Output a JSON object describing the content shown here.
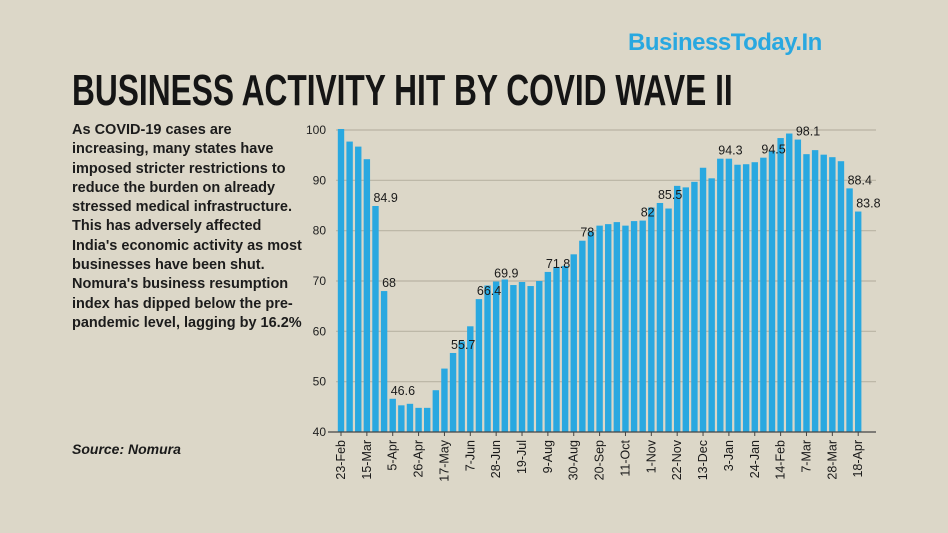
{
  "logo": "BusinessToday.In",
  "title": "BUSINESS ACTIVITY HIT BY COVID WAVE II",
  "description": "As COVID-19 cases are increasing, many states have imposed stricter restrictions to reduce the burden on already stressed medical infrastructure. This has adversely affected India's economic activity as most businesses have been shut. Nomura's business resumption index has dipped below the pre-pandemic level, lagging by 16.2%",
  "source": "Source: Nomura",
  "chart_data": {
    "type": "bar",
    "title": "",
    "xlabel": "",
    "ylabel": "",
    "ylim": [
      40,
      100
    ],
    "yticks": [
      40,
      50,
      60,
      70,
      80,
      90,
      100
    ],
    "grid": true,
    "bar_color": "#29a8e0",
    "x_tick_labels": [
      "23-Feb",
      "15-Mar",
      "5-Apr",
      "26-Apr",
      "17-May",
      "7-Jun",
      "28-Jun",
      "19-Jul",
      "9-Aug",
      "30-Aug",
      "20-Sep",
      "11-Oct",
      "1-Nov",
      "22-Nov",
      "13-Dec",
      "3-Jan",
      "24-Jan",
      "14-Feb",
      "7-Mar",
      "28-Mar",
      "18-Apr"
    ],
    "x_tick_every": 3,
    "values": [
      100.2,
      97.7,
      96.7,
      94.2,
      84.9,
      68,
      46.6,
      45.3,
      45.6,
      44.8,
      44.8,
      48.3,
      52.6,
      55.7,
      58.0,
      61.0,
      66.4,
      69.1,
      69.9,
      70.3,
      69.2,
      69.8,
      69.0,
      70.0,
      71.8,
      72.8,
      73.0,
      75.3,
      78,
      79.8,
      81.0,
      81.3,
      81.7,
      81.0,
      81.9,
      82,
      84.6,
      85.5,
      84.4,
      88.9,
      88.6,
      89.7,
      92.5,
      90.4,
      94.3,
      94.3,
      93.1,
      93.2,
      93.6,
      94.5,
      95.8,
      98.4,
      99.3,
      98.1,
      95.2,
      96.0,
      95.1,
      94.6,
      93.8,
      88.4,
      83.8
    ],
    "data_labels": [
      {
        "index": 4,
        "text": "84.9"
      },
      {
        "index": 5,
        "text": "68"
      },
      {
        "index": 6,
        "text": "46.6"
      },
      {
        "index": 13,
        "text": "55.7"
      },
      {
        "index": 16,
        "text": "66.4"
      },
      {
        "index": 18,
        "text": "69.9"
      },
      {
        "index": 24,
        "text": "71.8"
      },
      {
        "index": 28,
        "text": "78"
      },
      {
        "index": 35,
        "text": "82"
      },
      {
        "index": 37,
        "text": "85.5"
      },
      {
        "index": 44,
        "text": "94.3"
      },
      {
        "index": 49,
        "text": "94.5"
      },
      {
        "index": 53,
        "text": "98.1"
      },
      {
        "index": 59,
        "text": "88.4"
      },
      {
        "index": 60,
        "text": "83.8"
      }
    ]
  }
}
